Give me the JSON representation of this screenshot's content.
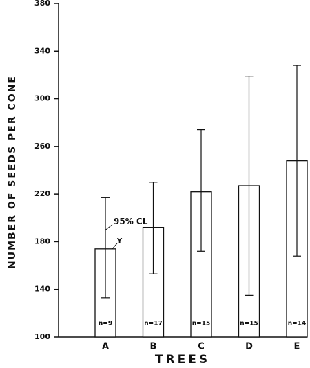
{
  "chart_data": {
    "type": "bar",
    "y_label": "NUMBER OF SEEDS PER CONE",
    "x_label": "TREES",
    "categories": [
      "A",
      "B",
      "C",
      "D",
      "E"
    ],
    "values": [
      174,
      192,
      222,
      227,
      248
    ],
    "ci_low": [
      133,
      153,
      172,
      135,
      168
    ],
    "ci_high": [
      217,
      230,
      274,
      319,
      328
    ],
    "n_labels": [
      "n=9",
      "n=17",
      "n=15",
      "n=15",
      "n=14"
    ],
    "annotations": [
      "95% CL",
      "Ȳ"
    ],
    "color": "#ffffff",
    "ylim": [
      100,
      380
    ],
    "yticks": [
      100,
      140,
      180,
      220,
      260,
      300,
      340,
      380
    ],
    "grid": false
  }
}
